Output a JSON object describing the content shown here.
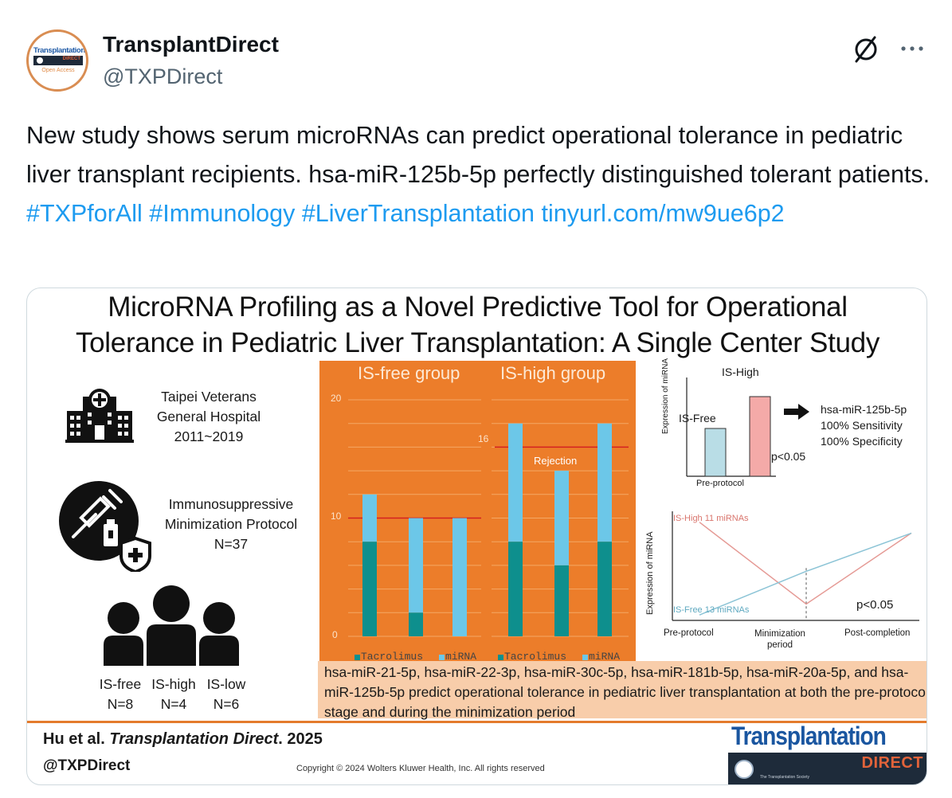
{
  "account": {
    "avatar_logo_text": "Transplantation",
    "avatar_bar_text": "DIRECT",
    "avatar_oa_text": "Open Access",
    "display_name": "TransplantDirect",
    "handle": "@TXPDirect"
  },
  "actions": {
    "grok_icon": "grok-slash-icon",
    "more_icon": "more-dots-icon"
  },
  "tweet": {
    "text": "New study shows serum microRNAs can predict operational tolerance in pediatric liver transplant recipients. hsa-miR-125b-5p perfectly distinguished tolerant patients.",
    "hashtags": [
      "#TXPforAll",
      "#Immunology",
      "#LiverTransplantation"
    ],
    "link": "tinyurl.com/mw9ue6p2"
  },
  "graphic": {
    "title_line1": "MicroRNA Profiling as a Novel Predictive Tool for Operational",
    "title_line2": "Tolerance in Pediatric Liver Transplantation: A Single Center Study",
    "hospital_lines": [
      "Taipei Veterans",
      "General Hospital",
      "2011~2019"
    ],
    "protocol_lines": [
      "Immunosuppressive",
      "Minimization Protocol",
      "N=37"
    ],
    "groups": [
      {
        "name": "IS-free",
        "n": "N=8"
      },
      {
        "name": "IS-high",
        "n": "N=4"
      },
      {
        "name": "IS-low",
        "n": "N=6"
      }
    ],
    "summary": "hsa-miR-21-5p, hsa-miR-22-3p, hsa-miR-30c-5p, hsa-miR-181b-5p, hsa-miR-20a-5p, and hsa-miR-125b-5p predict operational tolerance in pediatric liver transplantation at both the pre-protocol stage and during the minimization period",
    "citation_authors": "Hu et al.",
    "citation_journal": "Transplantation Direct",
    "citation_year": ". 2025",
    "footer_handle": "@TXPDirect",
    "copyright": "Copyright © 2024  Wolters Kluwer Health, Inc. All rights reserved",
    "brand_word": "Transplantation",
    "brand_direct": "DIRECT",
    "brand_society": "The Transplantation Society",
    "colors": {
      "orange": "#ec7d2a",
      "tacrolimus": "#0e8f8d",
      "mirna": "#6cc7e8",
      "peach": "#f8cdaa",
      "brand_blue": "#1a56a0"
    }
  },
  "chart_data": [
    {
      "type": "bar",
      "stacked": true,
      "panels": [
        {
          "title": "IS-free group",
          "threshold": 10,
          "bars": [
            {
              "tacrolimus": 8,
              "mirna": 4
            },
            {
              "tacrolimus": 2,
              "mirna": 8
            },
            {
              "tacrolimus": 0,
              "mirna": 10
            }
          ]
        },
        {
          "title": "IS-high group",
          "threshold": 16,
          "annotation": "Rejection",
          "bars": [
            {
              "tacrolimus": 8,
              "mirna": 10
            },
            {
              "tacrolimus": 6,
              "mirna": 8
            },
            {
              "tacrolimus": 8,
              "mirna": 10
            }
          ]
        }
      ],
      "yticks": [
        "0",
        "10",
        "20"
      ],
      "threshold_label": "16",
      "ylim": [
        0,
        20
      ],
      "legend": [
        "Tacrolimus",
        "miRNA"
      ]
    },
    {
      "type": "bar",
      "categories": [
        "IS-Free",
        "IS-High"
      ],
      "values": [
        3,
        5
      ],
      "ylim": [
        0,
        6
      ],
      "xlabel": "Pre-protocol",
      "ylabel": "Expression of miRNA",
      "pvalue": "p<0.05",
      "result_lines": [
        "hsa-miR-125b-5p",
        "100% Sensitivity",
        "100% Specificity"
      ]
    },
    {
      "type": "line",
      "x": [
        "Pre-protocol",
        "Minimization period",
        "Post-completion"
      ],
      "series": [
        {
          "name": "IS-High 11 miRNAs",
          "values": [
            9,
            1.5,
            8
          ]
        },
        {
          "name": "IS-Free 13 miRNAs",
          "values": [
            0.5,
            4.5,
            8
          ]
        }
      ],
      "ylim": [
        0,
        10
      ],
      "ylabel": "Expression of miRNA",
      "pvalue": "p<0.05"
    }
  ]
}
